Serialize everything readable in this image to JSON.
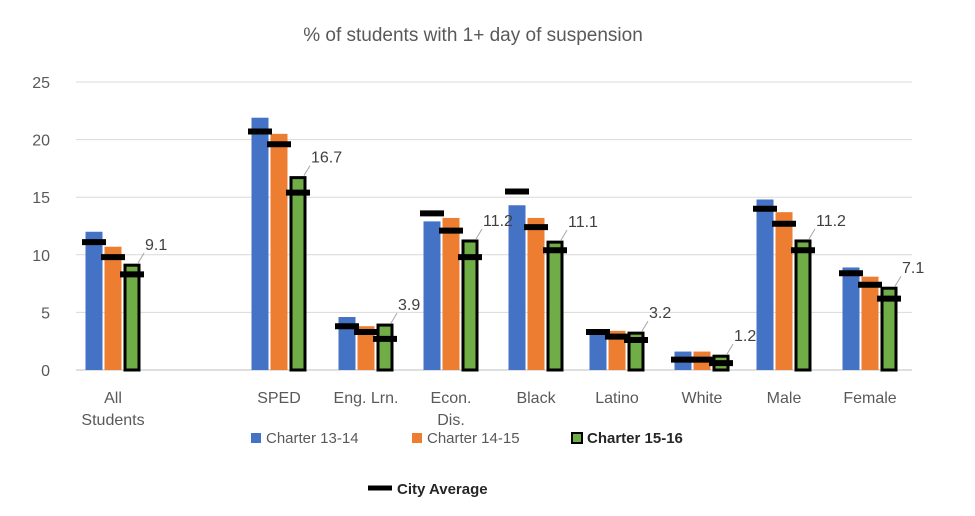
{
  "chart_data": {
    "type": "bar",
    "title": "% of students with 1+ day of suspension",
    "xlabel": "",
    "ylabel": "",
    "ylim": [
      0,
      25
    ],
    "yticks": [
      0,
      5,
      10,
      15,
      20,
      25
    ],
    "grid": true,
    "categories": [
      [
        "All",
        "Students"
      ],
      [
        "SPED"
      ],
      [
        "Eng. Lrn."
      ],
      [
        "Econ.",
        "Dis."
      ],
      [
        "Black"
      ],
      [
        "Latino"
      ],
      [
        "White"
      ],
      [
        "Male"
      ],
      [
        "Female"
      ]
    ],
    "series": [
      {
        "name": "Charter 13-14",
        "color": "#4472C4",
        "values": [
          12.0,
          21.9,
          4.6,
          12.9,
          14.3,
          3.4,
          1.6,
          14.8,
          8.9
        ]
      },
      {
        "name": "Charter 14-15",
        "color": "#ED7D31",
        "values": [
          10.7,
          20.5,
          3.8,
          13.2,
          13.2,
          3.4,
          1.6,
          13.7,
          8.1
        ]
      },
      {
        "name": "Charter 15-16",
        "color": "#70AD47",
        "values": [
          9.1,
          16.7,
          3.9,
          11.2,
          11.1,
          3.2,
          1.2,
          11.2,
          7.1
        ],
        "data_labels": [
          "9.1",
          "16.7",
          "3.9",
          "11.2",
          "11.1",
          "3.2",
          "1.2",
          "11.2",
          "7.1"
        ]
      }
    ],
    "city_average": {
      "name": "City Average",
      "color": "#000000",
      "values": [
        [
          11.1,
          9.8,
          8.3
        ],
        [
          20.7,
          19.6,
          15.4
        ],
        [
          3.8,
          3.3,
          2.7
        ],
        [
          13.6,
          12.1,
          9.8
        ],
        [
          15.5,
          12.4,
          10.4
        ],
        [
          3.3,
          2.9,
          2.6
        ],
        [
          0.9,
          0.9,
          0.6
        ],
        [
          14.0,
          12.7,
          10.4
        ],
        [
          8.4,
          7.4,
          6.2
        ]
      ]
    },
    "legend_position": "bottom"
  }
}
